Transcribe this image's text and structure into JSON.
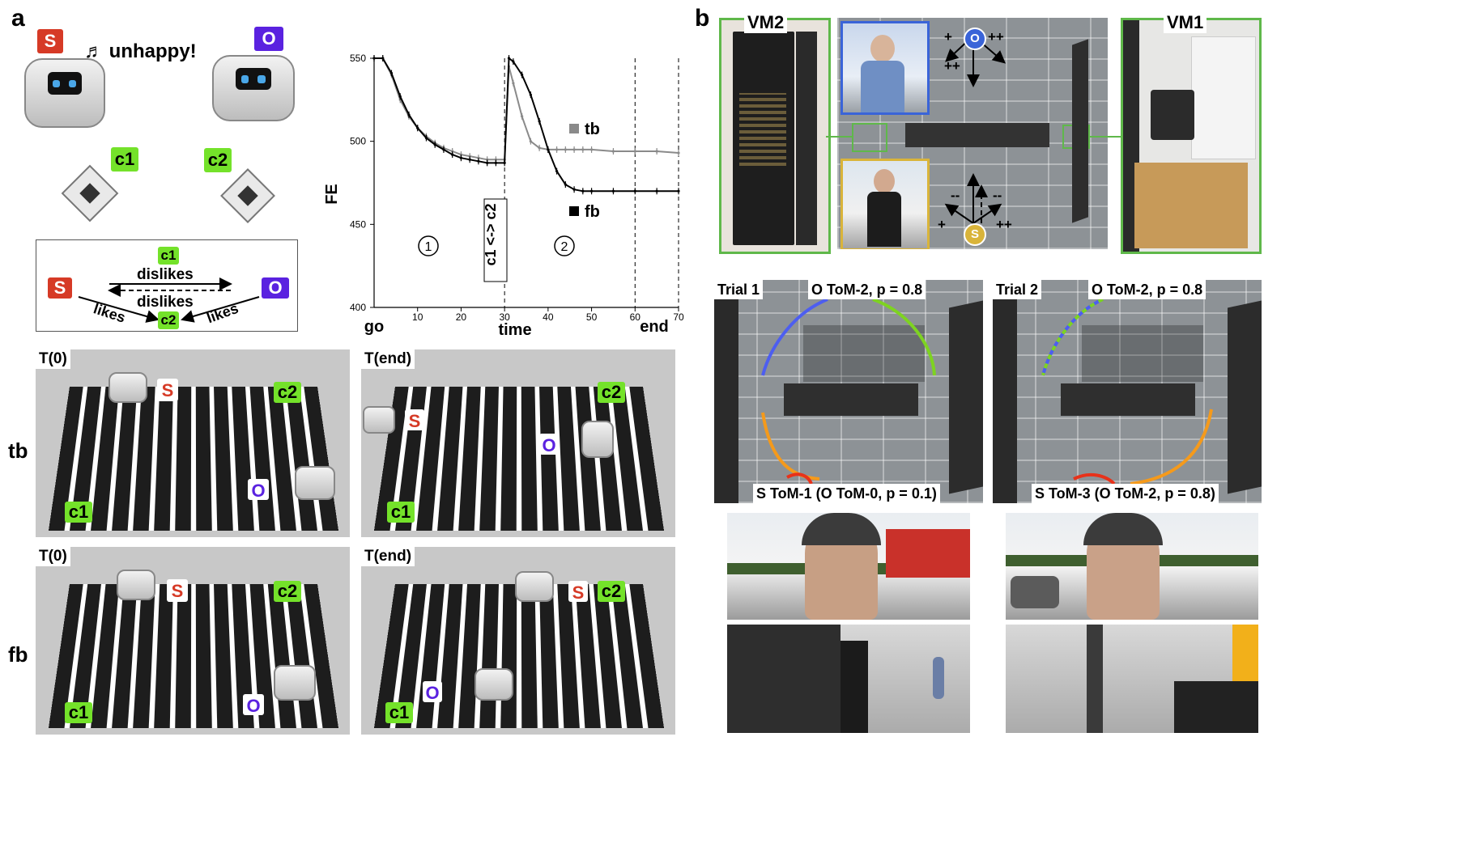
{
  "panel_a": {
    "letter": "a",
    "agent_s": "S",
    "agent_o": "O",
    "unhappy_text": "♬ unhappy!",
    "cube1": "c1",
    "cube2": "c2",
    "diagram": {
      "c1": "c1",
      "c2": "c2",
      "s": "S",
      "o": "O",
      "dislikes_top": "dislikes",
      "dislikes_bottom": "dislikes",
      "likes_left": "likes",
      "likes_right": "likes"
    }
  },
  "chart_data": {
    "type": "line",
    "ylabel": "FE",
    "xlabel": "time",
    "xlim": [
      0,
      70
    ],
    "ylim": [
      400,
      550
    ],
    "xticks": [
      "10",
      "20",
      "30",
      "40",
      "50",
      "60",
      "70"
    ],
    "yticks": [
      "400",
      "450",
      "500",
      "550"
    ],
    "go_label": "go",
    "end_label": "end",
    "phase1": "1",
    "phase2": "2",
    "switch_label": "c1 <-> c2",
    "series": [
      {
        "name": "tb",
        "color": "#8a8a8a",
        "x": [
          0,
          2,
          4,
          6,
          8,
          10,
          12,
          14,
          16,
          18,
          20,
          22,
          24,
          26,
          28,
          30,
          31,
          32,
          34,
          36,
          38,
          40,
          42,
          44,
          46,
          48,
          50,
          55,
          60,
          65,
          70
        ],
        "y": [
          550,
          550,
          540,
          525,
          515,
          508,
          503,
          499,
          496,
          494,
          492,
          491,
          490,
          489,
          489,
          489,
          545,
          535,
          515,
          500,
          496,
          495,
          495,
          495,
          495,
          495,
          495,
          494,
          494,
          494,
          493
        ]
      },
      {
        "name": "fb",
        "color": "#000000",
        "x": [
          0,
          2,
          4,
          6,
          8,
          10,
          12,
          14,
          16,
          18,
          20,
          22,
          24,
          26,
          28,
          30,
          31,
          32,
          34,
          36,
          38,
          40,
          42,
          44,
          46,
          48,
          50,
          55,
          60,
          65,
          70
        ],
        "y": [
          550,
          550,
          541,
          527,
          516,
          508,
          502,
          498,
          495,
          492,
          490,
          489,
          488,
          487,
          487,
          487,
          550,
          548,
          540,
          528,
          512,
          495,
          482,
          474,
          471,
          470,
          470,
          470,
          470,
          470,
          470
        ]
      }
    ]
  },
  "photos": {
    "row_label_tb": "tb",
    "row_label_fb": "fb",
    "t0": "T(0)",
    "tend": "T(end)",
    "s": "S",
    "o": "O",
    "c1": "c1",
    "c2": "c2"
  },
  "panel_b": {
    "letter": "b",
    "vm2": "VM2",
    "vm1": "VM1",
    "o_marker": "O",
    "s_marker": "S",
    "plus": "+",
    "plusplus": "++",
    "minusminus": "--",
    "trial1": {
      "label": "Trial 1",
      "o_title": "O ToM-2, p = 0.8",
      "s_title": "S ToM-1 (O ToM-0, p = 0.1)"
    },
    "trial2": {
      "label": "Trial 2",
      "o_title": "O ToM-2, p = 0.8",
      "s_title": "S ToM-3 (O ToM-2, p = 0.8)"
    },
    "colors": {
      "vm_frame": "#5fb84a",
      "o_frame": "#3a64d8",
      "s_frame": "#d9b43a",
      "path_blue": "#4d5ef0",
      "path_green": "#7ed321",
      "path_orange": "#f59a1b",
      "path_red": "#e8321a"
    }
  }
}
